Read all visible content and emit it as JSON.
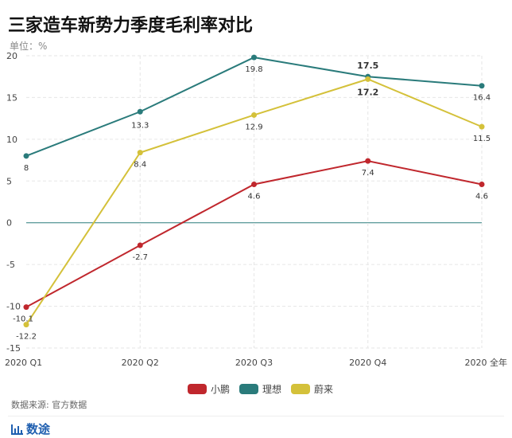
{
  "title": "三家造车新势力季度毛利率对比",
  "unit": "单位：%",
  "source": "数据来源: 官方数据",
  "logo": {
    "icon": "bar-chart-icon",
    "text": "数途"
  },
  "chart_data": {
    "type": "line",
    "categories": [
      "2020 Q1",
      "2020 Q2",
      "2020 Q3",
      "2020 Q4",
      "2020 全年"
    ],
    "ylim": [
      -15,
      20
    ],
    "yticks": [
      -15,
      -10,
      -5,
      0,
      5,
      10,
      15,
      20
    ],
    "grid": true,
    "legend": "bottom",
    "series": [
      {
        "name": "小鹏",
        "color": "#c0272d",
        "values": [
          -10.1,
          -2.7,
          4.6,
          7.4,
          4.6
        ],
        "labels": [
          "-10.1",
          "-2.7",
          "4.6",
          "7.4",
          "4.6"
        ]
      },
      {
        "name": "理想",
        "color": "#2a7b7b",
        "values": [
          8,
          13.3,
          19.8,
          17.5,
          16.4
        ],
        "labels": [
          "8",
          "13.3",
          "19.8",
          "17.5",
          "16.4"
        ]
      },
      {
        "name": "蔚来",
        "color": "#d4c13a",
        "values": [
          -12.2,
          8.4,
          12.9,
          17.2,
          11.5
        ],
        "labels": [
          "-12.2",
          "8.4",
          "12.9",
          "17.2",
          "11.5"
        ]
      }
    ]
  }
}
